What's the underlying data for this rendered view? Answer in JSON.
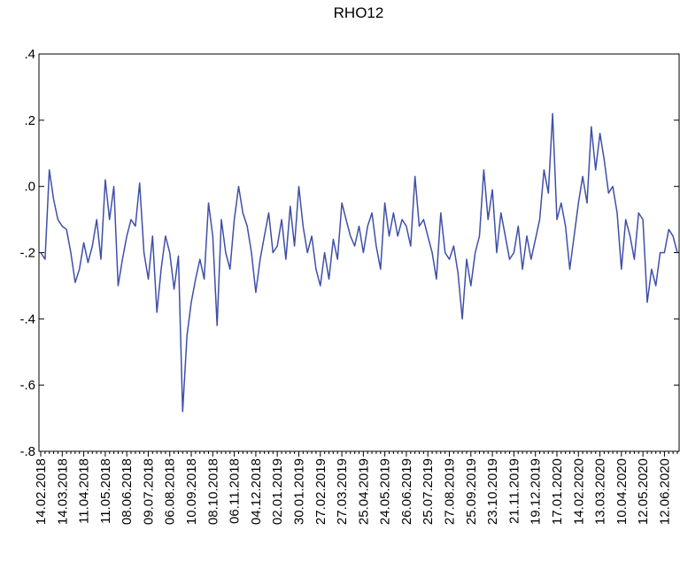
{
  "chart_data": {
    "type": "line",
    "title": "RHO12",
    "color": "#3f4fa8",
    "categories": [
      "14.02.2018",
      null,
      null,
      null,
      null,
      "14.03.2018",
      null,
      null,
      null,
      null,
      "11.04.2018",
      null,
      null,
      null,
      null,
      "11.05.2018",
      null,
      null,
      null,
      null,
      "08.06.2018",
      null,
      null,
      null,
      null,
      "09.07.2018",
      null,
      null,
      null,
      null,
      "06.08.2018",
      null,
      null,
      null,
      null,
      "10.09.2018",
      null,
      null,
      null,
      null,
      "08.10.2018",
      null,
      null,
      null,
      null,
      "06.11.2018",
      null,
      null,
      null,
      null,
      "04.12.2018",
      null,
      null,
      null,
      null,
      "02.01.2019",
      null,
      null,
      null,
      null,
      "30.01.2019",
      null,
      null,
      null,
      null,
      "27.02.2019",
      null,
      null,
      null,
      null,
      "27.03.2019",
      null,
      null,
      null,
      null,
      "25.04.2019",
      null,
      null,
      null,
      null,
      "24.05.2019",
      null,
      null,
      null,
      null,
      "26.06.2019",
      null,
      null,
      null,
      null,
      "25.07.2019",
      null,
      null,
      null,
      null,
      "27.08.2019",
      null,
      null,
      null,
      null,
      "25.09.2019",
      null,
      null,
      null,
      null,
      "23.10.2019",
      null,
      null,
      null,
      null,
      "21.11.2019",
      null,
      null,
      null,
      null,
      "19.12.2019",
      null,
      null,
      null,
      null,
      "17.01.2020",
      null,
      null,
      null,
      null,
      "14.02.2020",
      null,
      null,
      null,
      null,
      "13.03.2020",
      null,
      null,
      null,
      null,
      "10.04.2020",
      null,
      null,
      null,
      null,
      "12.05.2020",
      null,
      null,
      null,
      null,
      "12.06.2020",
      null,
      null,
      null
    ],
    "values": [
      -0.2,
      -0.22,
      0.05,
      -0.04,
      -0.1,
      -0.12,
      -0.13,
      -0.2,
      -0.29,
      -0.25,
      -0.17,
      -0.23,
      -0.18,
      -0.1,
      -0.22,
      0.02,
      -0.1,
      0.0,
      -0.3,
      -0.22,
      -0.15,
      -0.1,
      -0.12,
      0.01,
      -0.2,
      -0.28,
      -0.15,
      -0.38,
      -0.25,
      -0.15,
      -0.2,
      -0.31,
      -0.21,
      -0.68,
      -0.45,
      -0.35,
      -0.28,
      -0.22,
      -0.28,
      -0.05,
      -0.15,
      -0.42,
      -0.1,
      -0.2,
      -0.25,
      -0.1,
      0.0,
      -0.08,
      -0.12,
      -0.2,
      -0.32,
      -0.22,
      -0.15,
      -0.08,
      -0.2,
      -0.18,
      -0.1,
      -0.22,
      -0.06,
      -0.18,
      0.0,
      -0.12,
      -0.2,
      -0.15,
      -0.25,
      -0.3,
      -0.2,
      -0.28,
      -0.16,
      -0.22,
      -0.05,
      -0.1,
      -0.15,
      -0.18,
      -0.12,
      -0.2,
      -0.12,
      -0.08,
      -0.18,
      -0.25,
      -0.05,
      -0.15,
      -0.08,
      -0.15,
      -0.1,
      -0.12,
      -0.18,
      0.03,
      -0.12,
      -0.1,
      -0.15,
      -0.2,
      -0.28,
      -0.08,
      -0.2,
      -0.22,
      -0.18,
      -0.26,
      -0.4,
      -0.22,
      -0.3,
      -0.2,
      -0.15,
      0.05,
      -0.1,
      -0.01,
      -0.2,
      -0.08,
      -0.15,
      -0.22,
      -0.2,
      -0.12,
      -0.25,
      -0.15,
      -0.22,
      -0.16,
      -0.1,
      0.05,
      -0.02,
      0.22,
      -0.1,
      -0.05,
      -0.12,
      -0.25,
      -0.15,
      -0.05,
      0.03,
      -0.05,
      0.18,
      0.05,
      0.16,
      0.08,
      -0.02,
      0.0,
      -0.08,
      -0.25,
      -0.1,
      -0.15,
      -0.22,
      -0.08,
      -0.1,
      -0.35,
      -0.25,
      -0.3,
      -0.2,
      -0.2,
      -0.13,
      -0.15,
      -0.2
    ],
    "ylim": [
      -0.8,
      0.4
    ],
    "yticks": [
      {
        "value": 0.4,
        "label": ".4"
      },
      {
        "value": 0.2,
        "label": ".2"
      },
      {
        "value": 0,
        "label": ".0"
      },
      {
        "value": -0.2,
        "label": "-.2"
      },
      {
        "value": -0.4,
        "label": "-.4"
      },
      {
        "value": -0.6,
        "label": "-.6"
      },
      {
        "value": -0.8,
        "label": "-.8"
      }
    ],
    "grid": false
  }
}
